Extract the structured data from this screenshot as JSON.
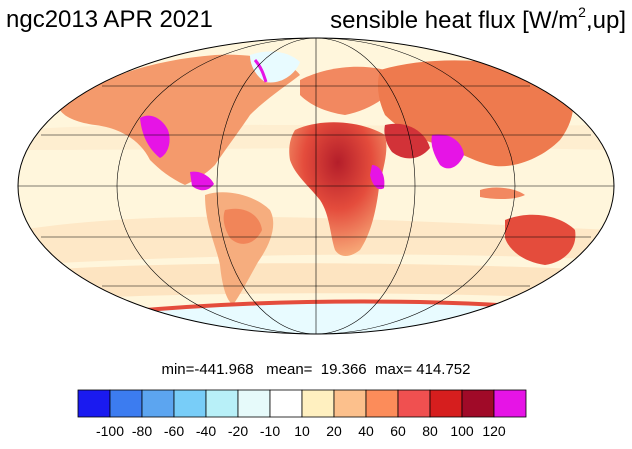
{
  "header": {
    "left_title": "ngc2013 APR 2021",
    "right_title_main": "sensible heat flux [W/m",
    "right_title_sup": "2",
    "right_title_tail": ",up]"
  },
  "stats": {
    "min": "min=-441.968",
    "mean": "mean=  19.366",
    "max": "max= 414.752"
  },
  "colorbar": {
    "labels": [
      "-100",
      "-80",
      "-60",
      "-40",
      "-20",
      "-10",
      "10",
      "20",
      "40",
      "60",
      "80",
      "100",
      "120"
    ],
    "colors": [
      "#1a1af0",
      "#3c7cf0",
      "#5ca5f0",
      "#78cdf8",
      "#b8f0f8",
      "#e6fafa",
      "#ffffff",
      "#fff0c0",
      "#fcc08c",
      "#fc8c5a",
      "#f05050",
      "#d61e1e",
      "#a00a28",
      "#e614e6"
    ]
  },
  "map": {
    "projection": "Mollweide",
    "ocean_color": "#fff6dc",
    "land_warm_color": "#f7a978",
    "desert_color": "#b41e2a",
    "ice_color": "#e8fbff",
    "hot_spot_color": "#e614e6"
  }
}
